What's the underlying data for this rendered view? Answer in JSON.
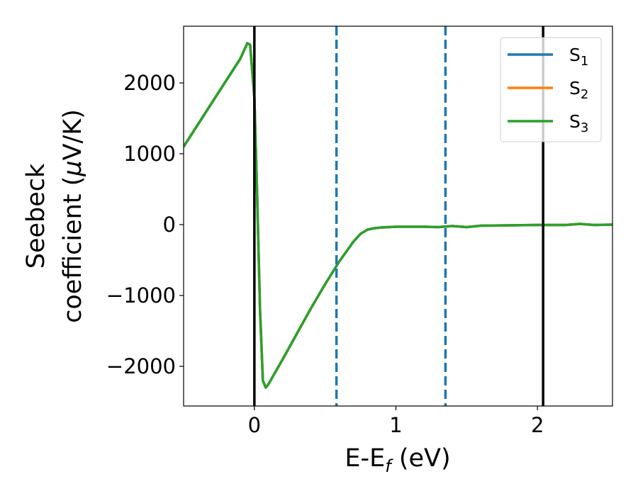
{
  "chart_data": {
    "type": "line",
    "xlabel": "E-E",
    "xlabel_sub": "f",
    "xlabel_unit": " (eV)",
    "ylabel_line1": "Seebeck",
    "ylabel_line2_pre": "coefficient  (",
    "ylabel_mu": "μ",
    "ylabel_line2_post": "V/K)",
    "xlim": [
      -0.5,
      2.53
    ],
    "ylim": [
      -2560,
      2800
    ],
    "xticks": [
      0,
      1,
      2
    ],
    "xtick_labels": [
      "0",
      "1",
      "2"
    ],
    "yticks": [
      -2000,
      -1000,
      0,
      1000,
      2000
    ],
    "ytick_labels": [
      "−2000",
      "−1000",
      "0",
      "1000",
      "2000"
    ],
    "legend_position": "top-right",
    "series": [
      {
        "name": "S",
        "sub": "1",
        "color": "#1f77b4",
        "x": [
          -0.5,
          -0.4,
          -0.3,
          -0.2,
          -0.1,
          -0.05,
          -0.03,
          0.0,
          0.02,
          0.04,
          0.06,
          0.08,
          0.1,
          0.2,
          0.3,
          0.4,
          0.5,
          0.6,
          0.7,
          0.75,
          0.8,
          0.85,
          0.9,
          1.0,
          1.1,
          1.2,
          1.3,
          1.4,
          1.5,
          1.6,
          1.8,
          2.0,
          2.2,
          2.3,
          2.4,
          2.53
        ],
        "y": [
          1100,
          1410,
          1720,
          2030,
          2340,
          2560,
          2540,
          1800,
          400,
          -1200,
          -2200,
          -2300,
          -2250,
          -1900,
          -1540,
          -1180,
          -840,
          -520,
          -240,
          -130,
          -70,
          -50,
          -40,
          -30,
          -30,
          -30,
          -35,
          -20,
          -35,
          -15,
          -10,
          -5,
          -5,
          10,
          -5,
          0
        ]
      },
      {
        "name": "S",
        "sub": "2",
        "color": "#ff7f0e",
        "x": [
          -0.5,
          -0.4,
          -0.3,
          -0.2,
          -0.1,
          -0.05,
          -0.03,
          0.0,
          0.02,
          0.04,
          0.06,
          0.08,
          0.1,
          0.2,
          0.3,
          0.4,
          0.5,
          0.6,
          0.7,
          0.75,
          0.8,
          0.85,
          0.9,
          1.0,
          1.1,
          1.2,
          1.3,
          1.4,
          1.5,
          1.6,
          1.8,
          2.0,
          2.2,
          2.3,
          2.4,
          2.53
        ],
        "y": [
          1100,
          1410,
          1720,
          2030,
          2340,
          2560,
          2540,
          1800,
          400,
          -1200,
          -2200,
          -2300,
          -2250,
          -1900,
          -1540,
          -1180,
          -840,
          -520,
          -240,
          -130,
          -70,
          -50,
          -40,
          -30,
          -30,
          -30,
          -35,
          -20,
          -35,
          -15,
          -10,
          -5,
          -5,
          10,
          -5,
          0
        ]
      },
      {
        "name": "S",
        "sub": "3",
        "color": "#2ca02c",
        "x": [
          -0.5,
          -0.4,
          -0.3,
          -0.2,
          -0.1,
          -0.05,
          -0.03,
          0.0,
          0.02,
          0.04,
          0.06,
          0.08,
          0.1,
          0.2,
          0.3,
          0.4,
          0.5,
          0.6,
          0.7,
          0.75,
          0.8,
          0.85,
          0.9,
          1.0,
          1.1,
          1.2,
          1.3,
          1.4,
          1.5,
          1.6,
          1.8,
          2.0,
          2.2,
          2.3,
          2.4,
          2.53
        ],
        "y": [
          1100,
          1410,
          1720,
          2030,
          2340,
          2560,
          2540,
          1800,
          400,
          -1200,
          -2200,
          -2300,
          -2250,
          -1900,
          -1540,
          -1180,
          -840,
          -520,
          -240,
          -130,
          -70,
          -50,
          -40,
          -30,
          -30,
          -30,
          -35,
          -20,
          -35,
          -15,
          -10,
          -5,
          -5,
          10,
          -5,
          0
        ]
      }
    ],
    "vlines": [
      {
        "x": 0.0,
        "style": "solid",
        "color": "#000000"
      },
      {
        "x": 0.58,
        "style": "dashed",
        "color": "#1f77b4"
      },
      {
        "x": 1.35,
        "style": "dashed",
        "color": "#1f77b4"
      },
      {
        "x": 2.04,
        "style": "solid",
        "color": "#000000"
      }
    ]
  }
}
